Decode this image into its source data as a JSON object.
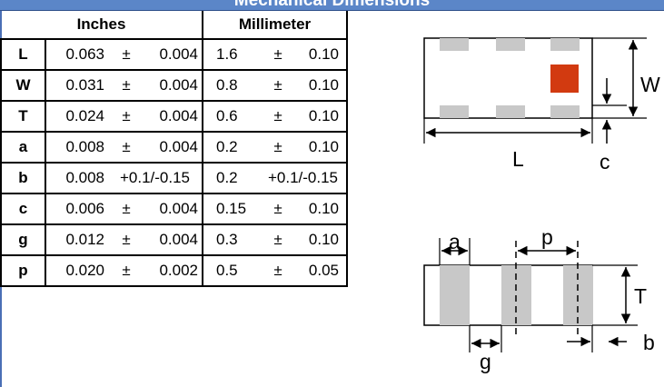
{
  "title": "Mechanical Dimensions",
  "headers": {
    "inches": "Inches",
    "millimeter": "Millimeter"
  },
  "rows": [
    {
      "symbol": "L",
      "in_value": "0.063",
      "in_pm": "±",
      "in_tol": "0.004",
      "mm_value": "1.6",
      "mm_pm": "±",
      "mm_tol": "0.10"
    },
    {
      "symbol": "W",
      "in_value": "0.031",
      "in_pm": "±",
      "in_tol": "0.004",
      "mm_value": "0.8",
      "mm_pm": "±",
      "mm_tol": "0.10"
    },
    {
      "symbol": "T",
      "in_value": "0.024",
      "in_pm": "±",
      "in_tol": "0.004",
      "mm_value": "0.6",
      "mm_pm": "±",
      "mm_tol": "0.10"
    },
    {
      "symbol": "a",
      "in_value": "0.008",
      "in_pm": "±",
      "in_tol": "0.004",
      "mm_value": "0.2",
      "mm_pm": "±",
      "mm_tol": "0.10"
    },
    {
      "symbol": "b",
      "in_value": "0.008",
      "in_tolerance": "+0.1/-0.15",
      "mm_value": "0.2",
      "mm_tolerance": "+0.1/-0.15"
    },
    {
      "symbol": "c",
      "in_value": "0.006",
      "in_pm": "±",
      "in_tol": "0.004",
      "mm_value": "0.15",
      "mm_pm": "±",
      "mm_tol": "0.10"
    },
    {
      "symbol": "g",
      "in_value": "0.012",
      "in_pm": "±",
      "in_tol": "0.004",
      "mm_value": "0.3",
      "mm_pm": "±",
      "mm_tol": "0.10"
    },
    {
      "symbol": "p",
      "in_value": "0.020",
      "in_pm": "±",
      "in_tol": "0.002",
      "mm_value": "0.5",
      "mm_pm": "±",
      "mm_tol": "0.05"
    }
  ],
  "diagram_labels": {
    "W": "W",
    "L": "L",
    "c": "c",
    "a": "a",
    "p": "p",
    "T": "T",
    "g": "g",
    "b": "b"
  },
  "colors": {
    "title_bar": "#5b86c8",
    "pad_gray": "#c8c8c8",
    "marker_red": "#d23a10"
  }
}
